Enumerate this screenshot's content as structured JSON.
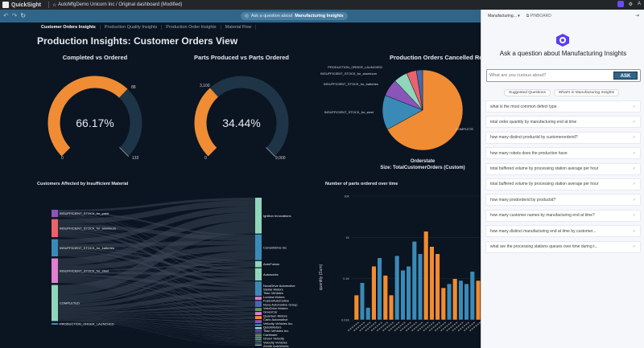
{
  "topbar": {
    "brand": "QuickSight",
    "account": "AutoMfgDemo Unicorn Inc",
    "dashboard": "Original dashboard (Modified)",
    "user_initial": "A"
  },
  "toolbar": {
    "ask_prefix": "Ask a question about",
    "ask_topic": "Manufacturing Insights"
  },
  "tabs": [
    {
      "label": "Customer Orders Insights",
      "active": true
    },
    {
      "label": "Production Quality Insights"
    },
    {
      "label": "Production Order Insights"
    },
    {
      "label": "Material Flow"
    }
  ],
  "page_title": "Production Insights: Customer Orders View",
  "colors": {
    "orange": "#f08c33",
    "blue": "#3a8ab8",
    "gauge_track": "#1e3547",
    "background": "#0b1421",
    "accent": "#2f6588"
  },
  "gauges": [
    {
      "title": "Completed vs Ordered",
      "value_label": "66.17%",
      "fraction": 0.6617,
      "min": "0",
      "max": "133",
      "target": "88"
    },
    {
      "title": "Parts Produced vs Parts Ordered",
      "value_label": "34.44%",
      "fraction": 0.3444,
      "min": "0",
      "max": "9,000",
      "target": "3,100"
    }
  ],
  "pie": {
    "title": "Production Orders Cancelled Roo",
    "xlabel": "Orderstate",
    "size_label": "Size: TotalCustomerOrders (Custom)",
    "slices": [
      {
        "label": "COMPLETE",
        "value": 67,
        "color": "#f08c33"
      },
      {
        "label": "INSUFFICIENT_STOCK_for_steel",
        "value": 14,
        "color": "#3a8ab8"
      },
      {
        "label": "INSUFFICIENT_STOCK_for_batteries",
        "value": 7,
        "color": "#8a55b8"
      },
      {
        "label": "INSUFFICIENT_STOCK_for_aluminum",
        "value": 5.5,
        "color": "#8fd6bb"
      },
      {
        "label": "PRODUCTION_ORDER_LAUNCHED",
        "value": 4,
        "color": "#e8636b"
      },
      {
        "label": "",
        "value": 2.5,
        "color": "#4b67b0"
      }
    ]
  },
  "sankey": {
    "title": "Customers Affected by Insufficient Material",
    "sources": [
      {
        "label": "INSUFFICIENT_STOCK_for_paint",
        "color": "#8a55b8",
        "weight": 9
      },
      {
        "label": "INSUFFICIENT_STOCK_for_aluminum",
        "color": "#e8636b",
        "weight": 22
      },
      {
        "label": "INSUFFICIENT_STOCK_for_batteries",
        "color": "#3a8ab8",
        "weight": 21
      },
      {
        "label": "INSUFFICIENT_STOCK_for_steel",
        "color": "#e07fd0",
        "weight": 30
      },
      {
        "label": "COMPLETED",
        "color": "#8fd6bb",
        "weight": 44
      },
      {
        "label": "PRODUCTION_ORDER_LAUNCHED",
        "color": "#3a8ab8",
        "weight": 2
      }
    ],
    "targets": [
      {
        "label": "Ignition Innovations",
        "color": "#8fd6bb",
        "weight": 35
      },
      {
        "label": "CurrentDrive Inc",
        "color": "#3a8ab8",
        "weight": 25
      },
      {
        "label": "AutoFusion",
        "color": "#8fd6bb",
        "weight": 6
      },
      {
        "label": "Autoworks",
        "color": "#8fd6bb",
        "weight": 12
      },
      {
        "label": "NovaDrive Automotive",
        "color": "#3a8ab8",
        "weight": 14
      },
      {
        "label": "Stellar Motors",
        "color": "#e07fd0",
        "weight": 3
      },
      {
        "label": "Titan Vehicles",
        "color": "#4b67b0",
        "weight": 6
      },
      {
        "label": "Lumina Motors",
        "color": "#5aa04a",
        "weight": 3
      },
      {
        "label": "FusionAutomotive",
        "color": "#e07fd0",
        "weight": 3
      },
      {
        "label": "Nova Automotive Group",
        "color": "#f08c33",
        "weight": 3
      },
      {
        "label": "VeloDrive Motors",
        "color": "#8a55b8",
        "weight": 3
      },
      {
        "label": "GreenCar",
        "color": "#3a8ab8",
        "weight": 2
      },
      {
        "label": "Quantum Motors",
        "color": "#8fd6bb",
        "weight": 2
      },
      {
        "label": "Carlo Automotive",
        "color": "#8a55b8",
        "weight": 1.5
      },
      {
        "label": "Velocity Vehicles Inc.",
        "color": "#8a55b8",
        "weight": 1
      },
      {
        "label": "QuickMotors",
        "color": "#8fd6bb",
        "weight": 1
      },
      {
        "label": "Titan Vehicles Inc.",
        "color": "#8fd6bb",
        "weight": 1
      },
      {
        "label": "CarModel",
        "color": "#8fd6bb",
        "weight": 1
      },
      {
        "label": "Green Velocity",
        "color": "#5aa04a",
        "weight": 1
      },
      {
        "label": "Velocity Vehicles",
        "color": "#8a55b8",
        "weight": 1
      },
      {
        "label": "Zenith AutoWorks",
        "color": "#8fd6bb",
        "weight": 1
      }
    ]
  },
  "chart_data": {
    "type": "bar",
    "title": "Number of parts ordered over time",
    "xlabel": "",
    "ylabel": "quantity (Sum)",
    "y_scale": "log",
    "ylim": [
      0.01,
      10
    ],
    "ytick_labels": [
      "0.01K",
      "0.1K",
      "1K",
      "10K"
    ],
    "ytick_values": [
      0.01,
      0.1,
      1,
      10
    ],
    "grid": true,
    "values_k": [
      0.04,
      0.08,
      0.02,
      0.2,
      0.32,
      0.12,
      0.04,
      0.36,
      0.16,
      0.2,
      0.8,
      0.4,
      1.4,
      0.6,
      0.4,
      0.06,
      0.075,
      0.1,
      0.09,
      0.075,
      0.15,
      0.09
    ],
    "colors": [
      "orange",
      "blue",
      "blue",
      "orange",
      "blue",
      "orange",
      "orange",
      "blue",
      "blue",
      "blue",
      "blue",
      "blue",
      "orange",
      "orange",
      "orange",
      "orange",
      "blue",
      "orange",
      "blue",
      "blue",
      "blue",
      "orange"
    ]
  },
  "panel": {
    "topic_select": "Manufacturing...",
    "pinboard": "PINBOARD",
    "heading": "Ask a question about Manufacturing Insights",
    "placeholder": "What are you curious about?",
    "ask": "ASK",
    "tab_suggested": "Suggested Questions",
    "tab_whats_in": "What's in Manufacturing Insights",
    "questions": [
      "what is the most common defect type",
      "total order quantity by manufacturing end at time",
      "how many distinct productid by customerorderid?",
      "how many robots does the production have",
      "total buffered volume by processing station average per hour",
      "total buffered volume by processing station average per hour",
      "how many prodorderid by productid?",
      "how many customer names by manufacturing end at time?",
      "how many distinct manufacturing end at time by customer...",
      "what are the processing stations queues over time during t..."
    ]
  }
}
